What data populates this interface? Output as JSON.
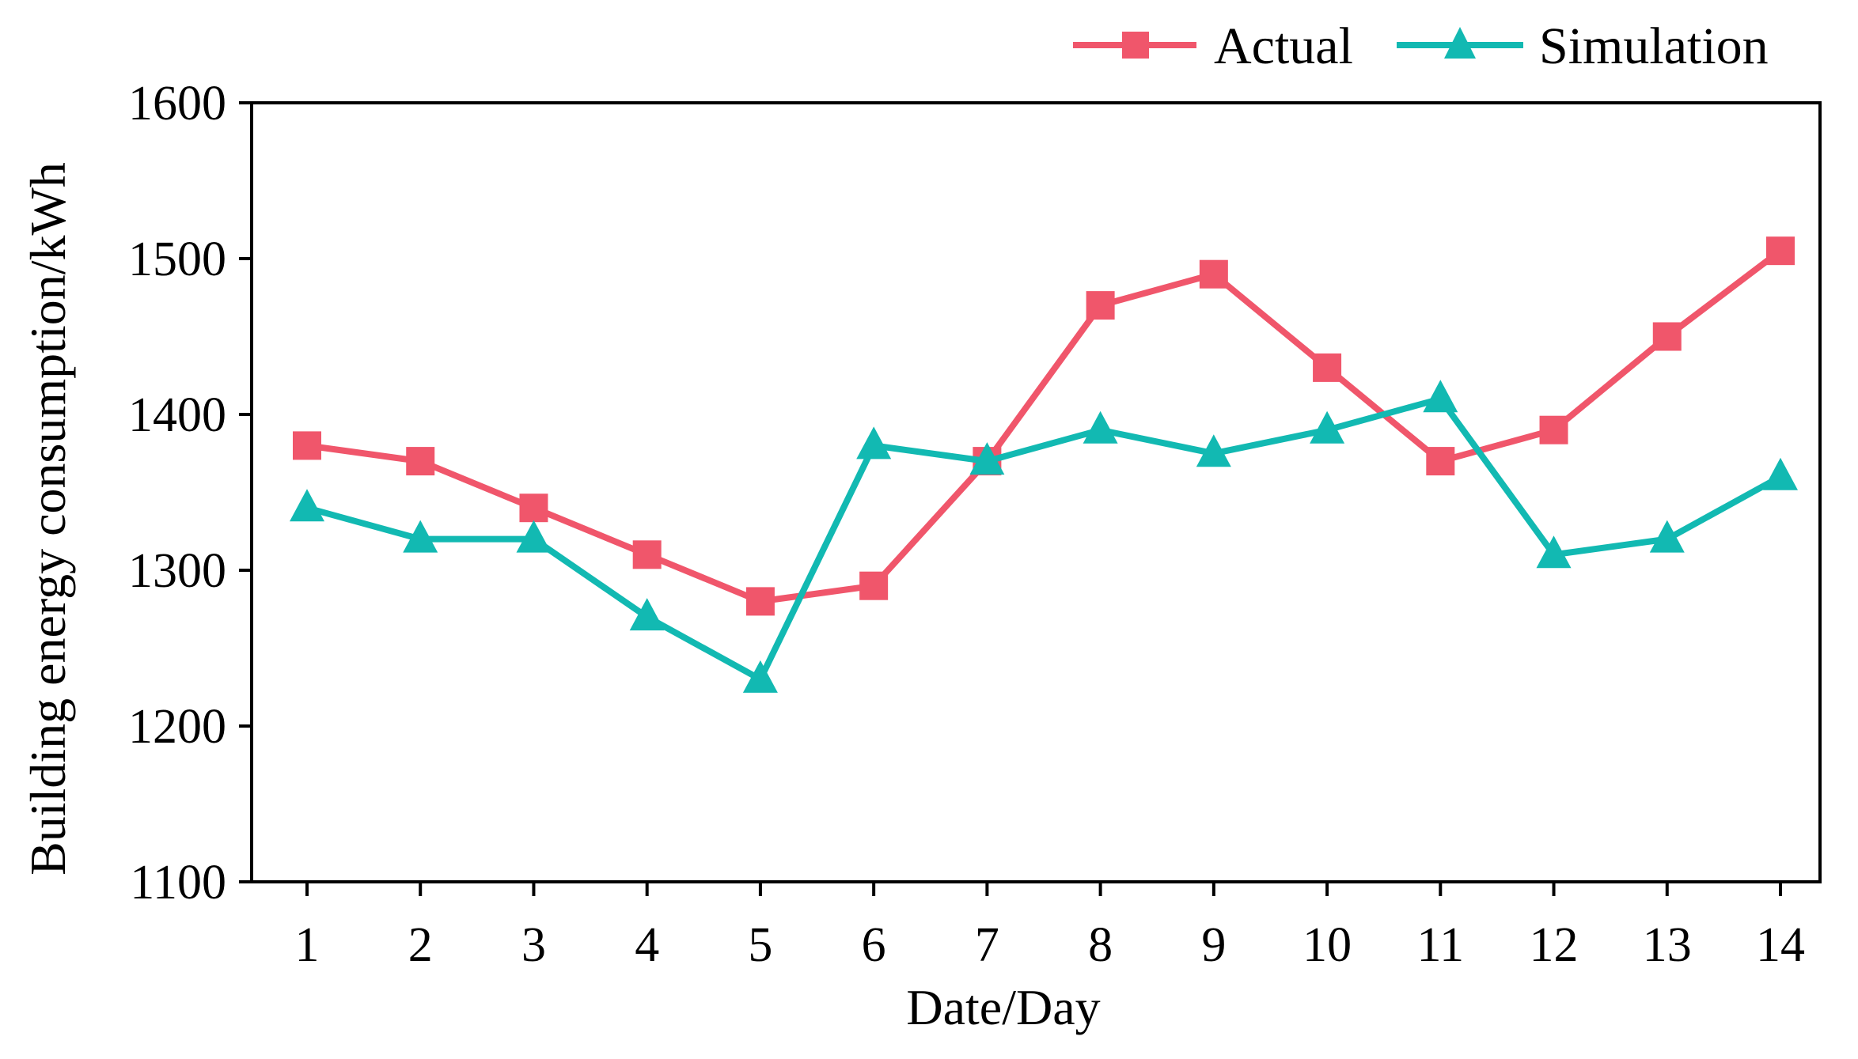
{
  "chart_data": {
    "type": "line",
    "title": "",
    "xlabel": "Date/Day",
    "ylabel": "Building energy consumption/kWh",
    "categories": [
      "1",
      "2",
      "3",
      "4",
      "5",
      "6",
      "7",
      "8",
      "9",
      "10",
      "11",
      "12",
      "13",
      "14"
    ],
    "x": [
      1,
      2,
      3,
      4,
      5,
      6,
      7,
      8,
      9,
      10,
      11,
      12,
      13,
      14
    ],
    "ylim": [
      1100,
      1600
    ],
    "yticks": [
      1100,
      1200,
      1300,
      1400,
      1500,
      1600
    ],
    "ytick_labels": [
      "1100",
      "1200",
      "1300",
      "1400",
      "1500",
      "1600"
    ],
    "grid": false,
    "legend_position": "top-right",
    "series": [
      {
        "name": "Actual",
        "color": "#f0566b",
        "marker": "square",
        "values": [
          1380,
          1370,
          1340,
          1310,
          1280,
          1290,
          1370,
          1470,
          1490,
          1430,
          1370,
          1390,
          1450,
          1505
        ]
      },
      {
        "name": "Simulation",
        "color": "#12b9b2",
        "marker": "triangle",
        "values": [
          1340,
          1320,
          1320,
          1270,
          1230,
          1380,
          1370,
          1390,
          1375,
          1390,
          1410,
          1310,
          1320,
          1360
        ]
      }
    ]
  }
}
